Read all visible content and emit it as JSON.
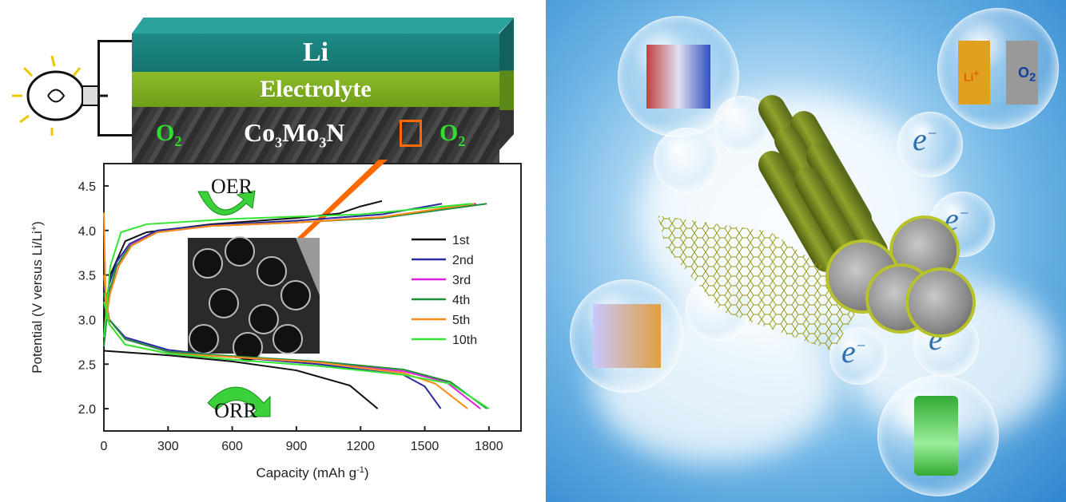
{
  "schematic": {
    "layers": {
      "li": "Li",
      "electrolyte": "Electrolyte",
      "cathode": "Co3Mo3N"
    },
    "cathode_formula": {
      "a": "Co",
      "a_sub": "3",
      "b": "Mo",
      "b_sub": "3",
      "c": "N"
    },
    "gas_label": "O",
    "gas_sub": "2",
    "reaction_top": "OER",
    "reaction_bottom": "ORR"
  },
  "illustration": {
    "electron_labels": [
      "e",
      "e",
      "e",
      "e"
    ],
    "electron_sup": "−",
    "ion_label": "Li",
    "ion_sup": "+",
    "oxygen_label": "O",
    "oxygen_sub": "2"
  },
  "chart_data": {
    "type": "line",
    "xlabel": "Capacity (mAh g",
    "xlabel_sup": "-1",
    "xlabel_end": ")",
    "ylabel": "Potential (V versus Li/Li",
    "ylabel_sup": "+",
    "ylabel_end": ")",
    "xlim": [
      0,
      1950
    ],
    "ylim": [
      1.75,
      4.75
    ],
    "xticks": [
      "0",
      "300",
      "600",
      "900",
      "1200",
      "1500",
      "1800"
    ],
    "yticks": [
      "2.0",
      "2.5",
      "3.0",
      "3.5",
      "4.0",
      "4.5"
    ],
    "legend_position": "right",
    "series": [
      {
        "name": "1st",
        "color": "#111111",
        "charge": [
          [
            0,
            3.0
          ],
          [
            30,
            3.5
          ],
          [
            100,
            3.88
          ],
          [
            200,
            3.98
          ],
          [
            500,
            4.07
          ],
          [
            900,
            4.14
          ],
          [
            1100,
            4.19
          ],
          [
            1200,
            4.27
          ],
          [
            1300,
            4.33
          ]
        ],
        "discharge": [
          [
            0,
            2.65
          ],
          [
            300,
            2.6
          ],
          [
            600,
            2.53
          ],
          [
            900,
            2.43
          ],
          [
            1150,
            2.26
          ],
          [
            1280,
            2.0
          ]
        ]
      },
      {
        "name": "2nd",
        "color": "#2b2ba0",
        "charge": [
          [
            0,
            2.75
          ],
          [
            25,
            3.4
          ],
          [
            60,
            3.65
          ],
          [
            120,
            3.85
          ],
          [
            250,
            4.0
          ],
          [
            500,
            4.06
          ],
          [
            900,
            4.11
          ],
          [
            1300,
            4.18
          ],
          [
            1580,
            4.3
          ]
        ],
        "discharge": [
          [
            0,
            3.4
          ],
          [
            25,
            3.0
          ],
          [
            100,
            2.8
          ],
          [
            300,
            2.66
          ],
          [
            600,
            2.58
          ],
          [
            1000,
            2.5
          ],
          [
            1400,
            2.38
          ],
          [
            1500,
            2.25
          ],
          [
            1575,
            2.0
          ]
        ]
      },
      {
        "name": "3rd",
        "color": "#e020e0",
        "charge": [
          [
            0,
            2.7
          ],
          [
            25,
            3.3
          ],
          [
            60,
            3.6
          ],
          [
            120,
            3.83
          ],
          [
            250,
            3.98
          ],
          [
            500,
            4.05
          ],
          [
            900,
            4.09
          ],
          [
            1300,
            4.15
          ],
          [
            1740,
            4.3
          ]
        ],
        "discharge": [
          [
            0,
            3.3
          ],
          [
            25,
            3.0
          ],
          [
            100,
            2.78
          ],
          [
            300,
            2.64
          ],
          [
            600,
            2.58
          ],
          [
            1000,
            2.52
          ],
          [
            1400,
            2.42
          ],
          [
            1600,
            2.3
          ],
          [
            1760,
            2.0
          ]
        ]
      },
      {
        "name": "4th",
        "color": "#1f8f3a",
        "charge": [
          [
            0,
            2.7
          ],
          [
            25,
            3.3
          ],
          [
            60,
            3.6
          ],
          [
            120,
            3.82
          ],
          [
            250,
            3.98
          ],
          [
            500,
            4.05
          ],
          [
            900,
            4.09
          ],
          [
            1300,
            4.14
          ],
          [
            1790,
            4.3
          ]
        ],
        "discharge": [
          [
            0,
            3.3
          ],
          [
            25,
            3.0
          ],
          [
            100,
            2.78
          ],
          [
            300,
            2.64
          ],
          [
            600,
            2.59
          ],
          [
            1000,
            2.53
          ],
          [
            1400,
            2.44
          ],
          [
            1620,
            2.3
          ],
          [
            1790,
            2.0
          ]
        ]
      },
      {
        "name": "5th",
        "color": "#ff8c1a",
        "charge": [
          [
            0,
            4.2
          ],
          [
            10,
            3.0
          ],
          [
            30,
            3.3
          ],
          [
            70,
            3.6
          ],
          [
            130,
            3.83
          ],
          [
            250,
            3.98
          ],
          [
            500,
            4.05
          ],
          [
            900,
            4.09
          ],
          [
            1300,
            4.15
          ],
          [
            1730,
            4.3
          ]
        ],
        "discharge": [
          [
            0,
            3.5
          ],
          [
            25,
            2.95
          ],
          [
            100,
            2.72
          ],
          [
            300,
            2.62
          ],
          [
            600,
            2.58
          ],
          [
            1000,
            2.52
          ],
          [
            1400,
            2.4
          ],
          [
            1550,
            2.28
          ],
          [
            1700,
            2.0
          ]
        ]
      },
      {
        "name": "10th",
        "color": "#33e633",
        "charge": [
          [
            0,
            2.8
          ],
          [
            30,
            3.6
          ],
          [
            80,
            3.98
          ],
          [
            200,
            4.07
          ],
          [
            600,
            4.13
          ],
          [
            1200,
            4.18
          ],
          [
            1720,
            4.3
          ]
        ],
        "discharge": [
          [
            0,
            3.2
          ],
          [
            25,
            2.95
          ],
          [
            100,
            2.72
          ],
          [
            300,
            2.62
          ],
          [
            600,
            2.55
          ],
          [
            1000,
            2.48
          ],
          [
            1400,
            2.38
          ],
          [
            1620,
            2.28
          ],
          [
            1800,
            2.0
          ]
        ]
      }
    ]
  }
}
